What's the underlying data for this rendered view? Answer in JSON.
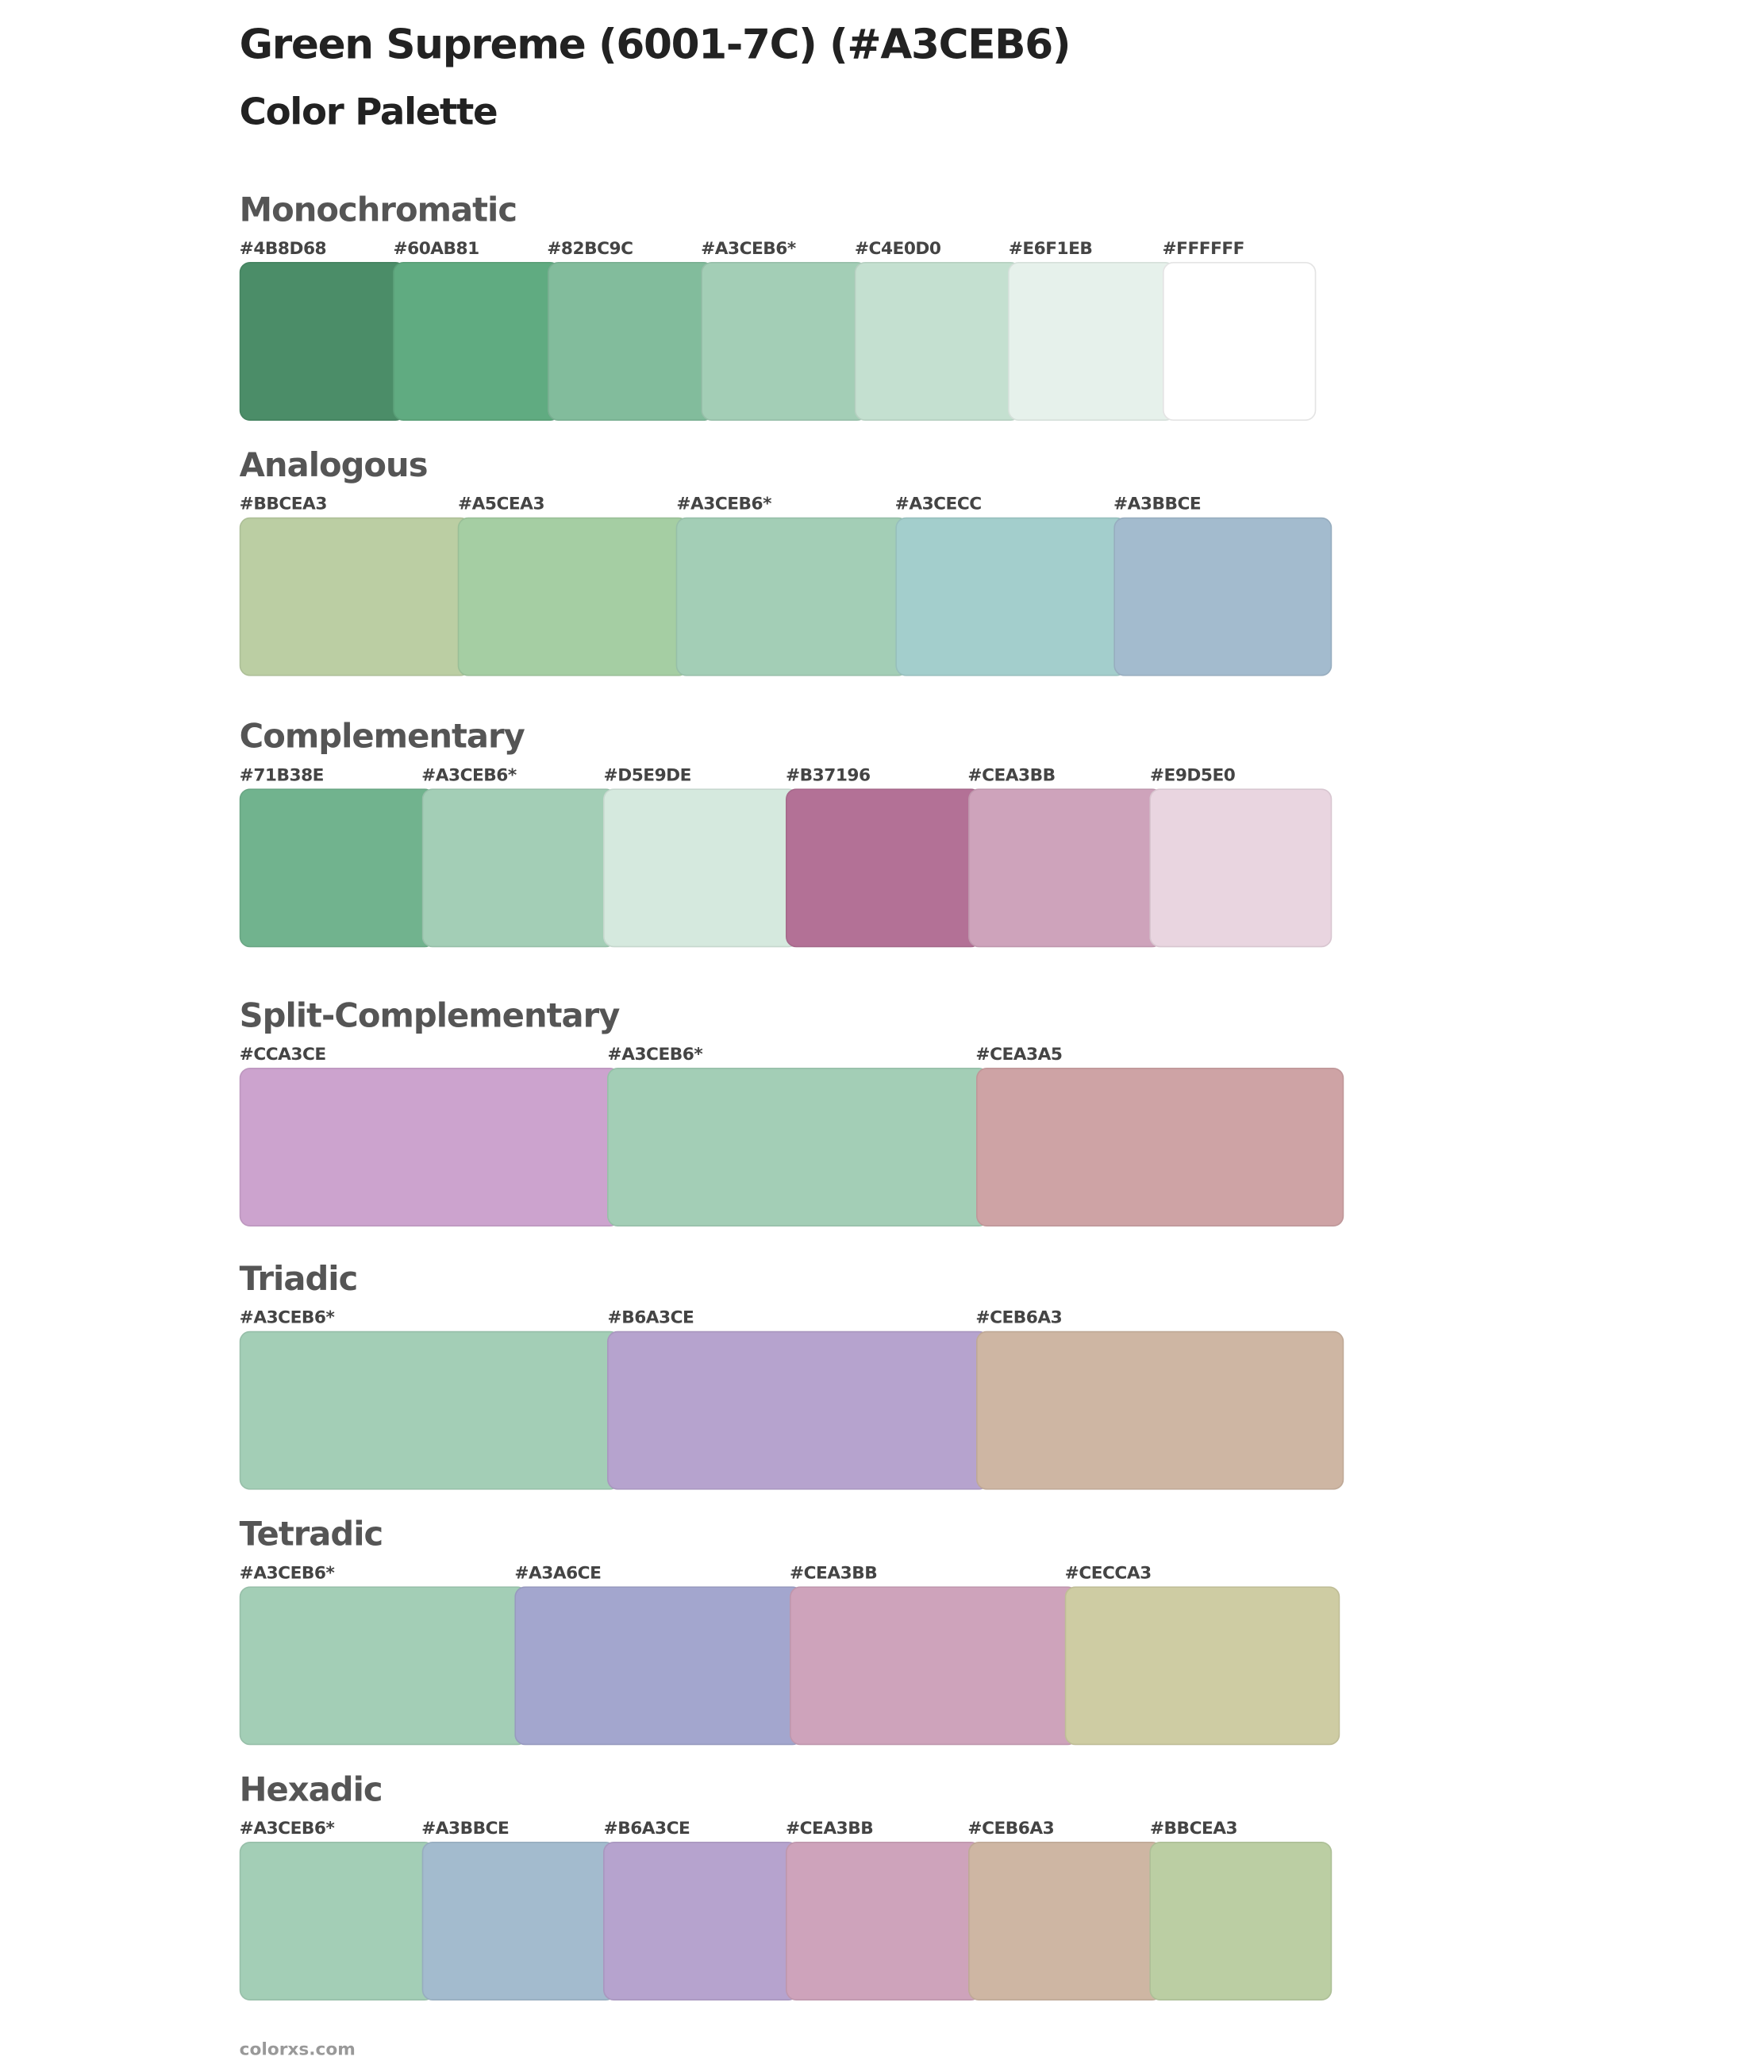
{
  "header": {
    "title": "Green Supreme (6001-7C) (#A3CEB6)",
    "subtitle": "Color Palette"
  },
  "sections": [
    {
      "name": "Monochromatic",
      "colors": [
        {
          "label": "#4B8D68",
          "hex": "#4B8D68"
        },
        {
          "label": "#60AB81",
          "hex": "#60AB81"
        },
        {
          "label": "#82BC9C",
          "hex": "#82BC9C"
        },
        {
          "label": "#A3CEB6*",
          "hex": "#A3CEB6"
        },
        {
          "label": "#C4E0D0",
          "hex": "#C4E0D0"
        },
        {
          "label": "#E6F1EB",
          "hex": "#E6F1EB"
        },
        {
          "label": "#FFFFFF",
          "hex": "#FFFFFF"
        }
      ]
    },
    {
      "name": "Analogous",
      "colors": [
        {
          "label": "#BBCEA3",
          "hex": "#BBCEA3"
        },
        {
          "label": "#A5CEA3",
          "hex": "#A5CEA3"
        },
        {
          "label": "#A3CEB6*",
          "hex": "#A3CEB6"
        },
        {
          "label": "#A3CECC",
          "hex": "#A3CECC"
        },
        {
          "label": "#A3BBCE",
          "hex": "#A3BBCE"
        }
      ]
    },
    {
      "name": "Complementary",
      "colors": [
        {
          "label": "#71B38E",
          "hex": "#71B38E"
        },
        {
          "label": "#A3CEB6*",
          "hex": "#A3CEB6"
        },
        {
          "label": "#D5E9DE",
          "hex": "#D5E9DE"
        },
        {
          "label": "#B37196",
          "hex": "#B37196"
        },
        {
          "label": "#CEA3BB",
          "hex": "#CEA3BB"
        },
        {
          "label": "#E9D5E0",
          "hex": "#E9D5E0"
        }
      ]
    },
    {
      "name": "Split-Complementary",
      "colors": [
        {
          "label": "#CCA3CE",
          "hex": "#CCA3CE"
        },
        {
          "label": "#A3CEB6*",
          "hex": "#A3CEB6"
        },
        {
          "label": "#CEA3A5",
          "hex": "#CEA3A5"
        }
      ]
    },
    {
      "name": "Triadic",
      "colors": [
        {
          "label": "#A3CEB6*",
          "hex": "#A3CEB6"
        },
        {
          "label": "#B6A3CE",
          "hex": "#B6A3CE"
        },
        {
          "label": "#CEB6A3",
          "hex": "#CEB6A3"
        }
      ]
    },
    {
      "name": "Tetradic",
      "colors": [
        {
          "label": "#A3CEB6*",
          "hex": "#A3CEB6"
        },
        {
          "label": "#A3A6CE",
          "hex": "#A3A6CE"
        },
        {
          "label": "#CEA3BB",
          "hex": "#CEA3BB"
        },
        {
          "label": "#CECCA3",
          "hex": "#CECCA3"
        }
      ]
    },
    {
      "name": "Hexadic",
      "colors": [
        {
          "label": "#A3CEB6*",
          "hex": "#A3CEB6"
        },
        {
          "label": "#A3BBCE",
          "hex": "#A3BBCE"
        },
        {
          "label": "#B6A3CE",
          "hex": "#B6A3CE"
        },
        {
          "label": "#CEA3BB",
          "hex": "#CEA3BB"
        },
        {
          "label": "#CEB6A3",
          "hex": "#CEB6A3"
        },
        {
          "label": "#BBCEA3",
          "hex": "#BBCEA3"
        }
      ]
    }
  ],
  "footer": {
    "text": "colorxs.com"
  }
}
